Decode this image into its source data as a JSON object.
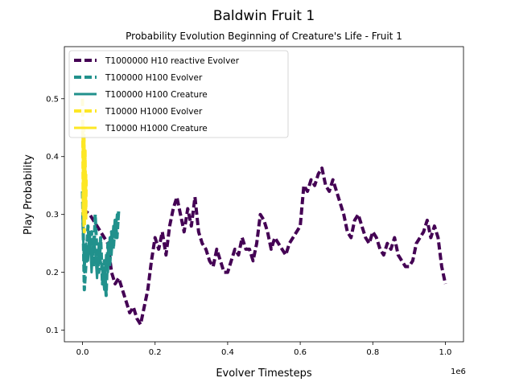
{
  "chart_data": {
    "type": "line",
    "title": "Baldwin Fruit 1",
    "subtitle": "Probability Evolution Beginning of Creature's Life - Fruit 1",
    "xlabel": "Evolver Timesteps",
    "ylabel": "Play Probability",
    "x_offset_label": "1e6",
    "xlim": [
      -50000,
      1050000
    ],
    "ylim": [
      0.08,
      0.59
    ],
    "x_ticks": [
      0,
      200000,
      400000,
      600000,
      800000,
      1000000
    ],
    "x_tick_labels": [
      "0.0",
      "0.2",
      "0.4",
      "0.6",
      "0.8",
      "1.0"
    ],
    "y_ticks": [
      0.1,
      0.2,
      0.3,
      0.4,
      0.5
    ],
    "y_tick_labels": [
      "0.1",
      "0.2",
      "0.3",
      "0.4",
      "0.5"
    ],
    "grid": false,
    "legend_position": "top-left",
    "series": [
      {
        "name": "T1000000 H10 reactive Evolver",
        "color": "#440154",
        "style": "dashed",
        "x": [
          0,
          20000,
          50000,
          70000,
          80000,
          90000,
          100000,
          110000,
          120000,
          130000,
          140000,
          150000,
          160000,
          170000,
          180000,
          190000,
          200000,
          210000,
          220000,
          230000,
          240000,
          250000,
          260000,
          270000,
          280000,
          290000,
          300000,
          310000,
          320000,
          330000,
          340000,
          350000,
          360000,
          370000,
          380000,
          390000,
          400000,
          410000,
          420000,
          430000,
          440000,
          450000,
          460000,
          470000,
          480000,
          490000,
          500000,
          510000,
          520000,
          530000,
          540000,
          550000,
          560000,
          570000,
          580000,
          590000,
          600000,
          610000,
          620000,
          630000,
          640000,
          650000,
          660000,
          670000,
          680000,
          690000,
          700000,
          710000,
          720000,
          730000,
          740000,
          750000,
          760000,
          770000,
          780000,
          790000,
          800000,
          810000,
          820000,
          830000,
          840000,
          850000,
          860000,
          870000,
          880000,
          890000,
          900000,
          910000,
          920000,
          930000,
          940000,
          950000,
          960000,
          970000,
          980000,
          990000,
          1000000
        ],
        "y": [
          0.31,
          0.3,
          0.27,
          0.25,
          0.2,
          0.18,
          0.19,
          0.17,
          0.15,
          0.13,
          0.14,
          0.12,
          0.11,
          0.14,
          0.17,
          0.22,
          0.26,
          0.24,
          0.27,
          0.23,
          0.28,
          0.31,
          0.33,
          0.3,
          0.27,
          0.31,
          0.28,
          0.33,
          0.27,
          0.25,
          0.24,
          0.22,
          0.21,
          0.24,
          0.22,
          0.2,
          0.2,
          0.22,
          0.24,
          0.23,
          0.26,
          0.24,
          0.24,
          0.22,
          0.25,
          0.3,
          0.29,
          0.27,
          0.24,
          0.26,
          0.25,
          0.24,
          0.23,
          0.25,
          0.26,
          0.27,
          0.28,
          0.35,
          0.34,
          0.36,
          0.35,
          0.37,
          0.38,
          0.35,
          0.34,
          0.36,
          0.34,
          0.32,
          0.3,
          0.27,
          0.26,
          0.29,
          0.3,
          0.28,
          0.26,
          0.25,
          0.27,
          0.26,
          0.24,
          0.23,
          0.25,
          0.24,
          0.26,
          0.23,
          0.22,
          0.21,
          0.21,
          0.22,
          0.25,
          0.26,
          0.27,
          0.29,
          0.26,
          0.28,
          0.26,
          0.21,
          0.18
        ]
      },
      {
        "name": "T100000 H100 Evolver",
        "color": "#21918c",
        "style": "dashed",
        "x": [
          0,
          5000,
          10000,
          15000,
          20000,
          25000,
          30000,
          35000,
          40000,
          45000,
          50000,
          55000,
          60000,
          65000,
          70000,
          75000,
          80000,
          85000,
          90000,
          95000,
          100000
        ],
        "y": [
          0.34,
          0.17,
          0.22,
          0.28,
          0.24,
          0.27,
          0.21,
          0.3,
          0.23,
          0.2,
          0.26,
          0.18,
          0.22,
          0.16,
          0.25,
          0.21,
          0.27,
          0.24,
          0.29,
          0.26,
          0.31
        ]
      },
      {
        "name": "T100000 H100 Creature",
        "color": "#21918c",
        "style": "solid",
        "x": [
          0,
          5000,
          10000,
          15000,
          20000,
          25000,
          30000,
          35000,
          40000,
          45000,
          50000,
          55000,
          60000,
          65000,
          70000,
          75000,
          80000,
          85000,
          90000,
          95000,
          100000
        ],
        "y": [
          0.3,
          0.2,
          0.25,
          0.22,
          0.27,
          0.2,
          0.26,
          0.24,
          0.19,
          0.25,
          0.22,
          0.2,
          0.17,
          0.23,
          0.2,
          0.26,
          0.23,
          0.28,
          0.26,
          0.3,
          0.29
        ]
      },
      {
        "name": "T10000 H1000 Evolver",
        "color": "#fde725",
        "style": "dashed",
        "x": [
          0,
          1000,
          2000,
          3000,
          4000,
          5000,
          6000,
          7000,
          8000,
          9000,
          10000
        ],
        "y": [
          0.5,
          0.42,
          0.3,
          0.38,
          0.45,
          0.27,
          0.35,
          0.41,
          0.33,
          0.29,
          0.36
        ]
      },
      {
        "name": "T10000 H1000 Creature",
        "color": "#fde725",
        "style": "solid",
        "x": [
          0,
          1000,
          2000,
          3000,
          4000,
          5000,
          6000,
          7000,
          8000,
          9000,
          10000
        ],
        "y": [
          0.46,
          0.4,
          0.33,
          0.28,
          0.36,
          0.43,
          0.31,
          0.39,
          0.34,
          0.3,
          0.37
        ]
      }
    ]
  }
}
